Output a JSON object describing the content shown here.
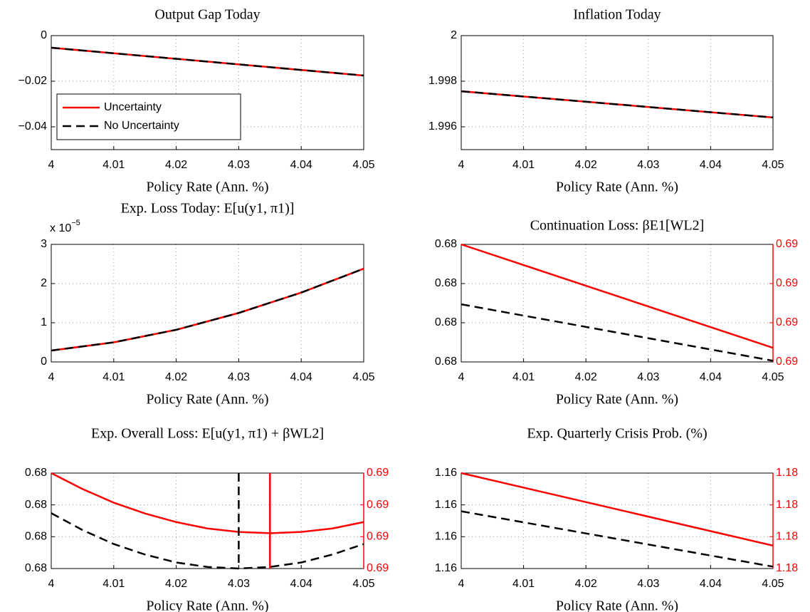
{
  "chart_data": [
    {
      "type": "line",
      "title": "Output Gap Today",
      "xlabel": "Policy Rate (Ann. %)",
      "x": [
        4,
        4.05
      ],
      "xlim": [
        4,
        4.05
      ],
      "xticks": [
        4,
        4.01,
        4.02,
        4.03,
        4.04,
        4.05
      ],
      "ylim": [
        -0.05,
        0
      ],
      "yticks": [
        0,
        {
          "value": -0.02,
          "label": "−0.02"
        },
        {
          "value": -0.04,
          "label": "−0.04"
        }
      ],
      "grid": true,
      "legend": "lower left",
      "series": [
        {
          "name": "Uncertainty",
          "color": "#ff0000",
          "style": "solid",
          "values": [
            -0.0053,
            -0.0175
          ]
        },
        {
          "name": "No Uncertainty",
          "color": "#000000",
          "style": "dashed",
          "values": [
            -0.0053,
            -0.0175
          ]
        }
      ]
    },
    {
      "type": "line",
      "title": "Inflation Today",
      "xlabel": "Policy Rate (Ann. %)",
      "x": [
        4,
        4.05
      ],
      "xlim": [
        4,
        4.05
      ],
      "xticks": [
        4,
        4.01,
        4.02,
        4.03,
        4.04,
        4.05
      ],
      "ylim": [
        1.995,
        2
      ],
      "yticks": [
        2,
        1.998,
        1.996
      ],
      "grid": true,
      "series": [
        {
          "color": "#ff0000",
          "style": "solid",
          "values": [
            1.99756,
            1.99641
          ]
        },
        {
          "color": "#000000",
          "style": "dashed",
          "values": [
            1.99756,
            1.99641
          ]
        }
      ]
    },
    {
      "type": "line",
      "title": "Exp. Loss Today: E[u(y1, π1)]",
      "xlabel": "Policy Rate (Ann. %)",
      "ymultiplier": "x 10",
      "ymultiplier_exp": "−5",
      "x": [
        4,
        4.01,
        4.02,
        4.03,
        4.04,
        4.05
      ],
      "xlim": [
        4,
        4.05
      ],
      "xticks": [
        4,
        4.01,
        4.02,
        4.03,
        4.04,
        4.05
      ],
      "ylim": [
        0,
        3
      ],
      "yticks": [
        0,
        1,
        2,
        3
      ],
      "grid": true,
      "series": [
        {
          "color": "#ff0000",
          "style": "solid",
          "values": [
            0.29,
            0.5,
            0.82,
            1.25,
            1.77,
            2.38
          ]
        },
        {
          "color": "#000000",
          "style": "dashed",
          "values": [
            0.29,
            0.5,
            0.82,
            1.25,
            1.77,
            2.38
          ]
        }
      ]
    },
    {
      "type": "line",
      "title": "Continuation Loss: βE1[WL2]",
      "xlabel": "Policy Rate (Ann. %)",
      "x": [
        4,
        4.05
      ],
      "xlim": [
        4,
        4.05
      ],
      "xticks": [
        4,
        4.01,
        4.02,
        4.03,
        4.04,
        4.05
      ],
      "ylim": [
        0.68,
        0.6803
      ],
      "yticks": [
        0.68,
        {
          "value": 0.6801,
          "label": "0.68"
        },
        {
          "value": 0.6802,
          "label": "0.68"
        },
        {
          "value": 0.6803,
          "label": "0.68"
        }
      ],
      "y2lim": [
        0.685,
        0.6853
      ],
      "y2ticks": [
        {
          "value": 0.685,
          "label": "0.69"
        },
        {
          "value": 0.6851,
          "label": "0.69"
        },
        {
          "value": 0.6852,
          "label": "0.69"
        },
        {
          "value": 0.6853,
          "label": "0.69"
        }
      ],
      "y2color": "#ff0000",
      "grid": true,
      "series": [
        {
          "color": "#ff0000",
          "style": "solid",
          "axis": "y2",
          "values": [
            0.6853,
            0.685036
          ]
        },
        {
          "color": "#000000",
          "style": "dashed",
          "values": [
            0.680147,
            0.680003
          ]
        }
      ]
    },
    {
      "type": "line",
      "title": "Exp. Overall Loss: E[u(y1, π1) + βWL2]",
      "xlabel": "Policy Rate (Ann. %)",
      "x": [
        4,
        4.005,
        4.01,
        4.015,
        4.02,
        4.025,
        4.03,
        4.035,
        4.04,
        4.045,
        4.05
      ],
      "xlim": [
        4,
        4.05
      ],
      "xticks": [
        4,
        4.01,
        4.02,
        4.03,
        4.04,
        4.05
      ],
      "ylim": [
        0.68,
        0.6803
      ],
      "yticks": [
        0.68,
        {
          "value": 0.6801,
          "label": "0.68"
        },
        {
          "value": 0.6802,
          "label": "0.68"
        },
        {
          "value": 0.6803,
          "label": "0.68"
        }
      ],
      "y2lim": [
        0.685,
        0.6853
      ],
      "y2ticks": [
        {
          "value": 0.685,
          "label": "0.69"
        },
        {
          "value": 0.6851,
          "label": "0.69"
        },
        {
          "value": 0.6852,
          "label": "0.69"
        },
        {
          "value": 0.6853,
          "label": "0.69"
        }
      ],
      "y2color": "#ff0000",
      "grid": true,
      "series": [
        {
          "color": "#ff0000",
          "style": "solid",
          "axis": "y2",
          "values": [
            0.6853,
            0.68525,
            0.685207,
            0.685173,
            0.685146,
            0.685126,
            0.685115,
            0.685111,
            0.685115,
            0.685126,
            0.685146
          ]
        },
        {
          "color": "#000000",
          "style": "dashed",
          "values": [
            0.680174,
            0.680121,
            0.680077,
            0.680044,
            0.680019,
            0.680005,
            0.68,
            0.680005,
            0.680019,
            0.680044,
            0.680077
          ]
        }
      ],
      "vlines": [
        {
          "x": 4.035,
          "color": "#ff0000",
          "style": "solid"
        },
        {
          "x": 4.03,
          "color": "#000000",
          "style": "dashed"
        }
      ]
    },
    {
      "type": "line",
      "title": "Exp. Quarterly Crisis Prob. (%)",
      "xlabel": "Policy Rate (Ann. %)",
      "x": [
        4,
        4.05
      ],
      "xlim": [
        4,
        4.05
      ],
      "xticks": [
        4,
        4.01,
        4.02,
        4.03,
        4.04,
        4.05
      ],
      "ylim": [
        1.16,
        1.1603
      ],
      "yticks": [
        1.16,
        {
          "value": 1.1601,
          "label": "1.16"
        },
        {
          "value": 1.1602,
          "label": "1.16"
        },
        {
          "value": 1.1603,
          "label": "1.16"
        }
      ],
      "y2lim": [
        1.18,
        1.1803
      ],
      "y2ticks": [
        1.18,
        {
          "value": 1.1801,
          "label": "1.18"
        },
        {
          "value": 1.1802,
          "label": "1.18"
        },
        {
          "value": 1.1803,
          "label": "1.18"
        }
      ],
      "y2color": "#ff0000",
      "grid": true,
      "series": [
        {
          "color": "#ff0000",
          "style": "solid",
          "axis": "y2",
          "values": [
            1.1803,
            1.180072
          ]
        },
        {
          "color": "#000000",
          "style": "dashed",
          "values": [
            1.16018,
            1.160006
          ]
        }
      ]
    }
  ]
}
